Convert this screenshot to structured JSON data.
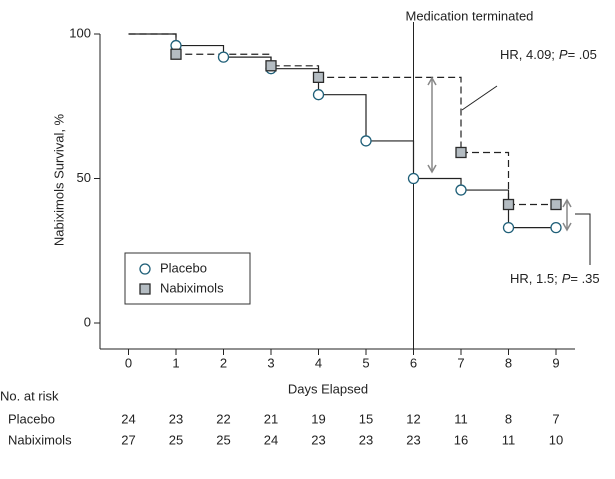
{
  "chart_data": {
    "type": "step",
    "x_label": "Days Elapsed",
    "y_label": "Nabiximols Survival, %",
    "x": [
      0,
      1,
      2,
      3,
      4,
      5,
      6,
      7,
      8,
      9
    ],
    "xlim": [
      -0.6,
      9.4
    ],
    "xticks": [
      0,
      1,
      2,
      3,
      4,
      5,
      6,
      7,
      8,
      9
    ],
    "ylim": [
      -9,
      100
    ],
    "yticks": [
      0,
      50,
      100
    ],
    "series": [
      {
        "name": "Placebo",
        "color": "#1f5f78",
        "fill": "#ffffff",
        "marker": "circle",
        "dash": false,
        "values": [
          100,
          96,
          92,
          88,
          79,
          63,
          50,
          46,
          33,
          33
        ],
        "censored_x": [
          1,
          2,
          3,
          4,
          5,
          6,
          7,
          8,
          9
        ]
      },
      {
        "name": "Nabiximols",
        "color": "#2b2b2b",
        "fill": "#b4bcc2",
        "marker": "square",
        "dash": true,
        "values": [
          100,
          93,
          93,
          89,
          85,
          85,
          85,
          59,
          41,
          41
        ],
        "censored_x": [
          1,
          3,
          4,
          7,
          8,
          9
        ]
      }
    ],
    "vline": {
      "x": 6,
      "label": "Medication terminated"
    },
    "annotations": [
      {
        "hr": "HR, 4.09;",
        "p": "P",
        "p_value": "= .05"
      },
      {
        "hr": "HR, 1.5;",
        "p": "P",
        "p_value": "= .35"
      }
    ],
    "risk_table": {
      "title": "No. at risk",
      "rows": [
        {
          "name": "Placebo",
          "values": [
            24,
            23,
            22,
            21,
            19,
            15,
            12,
            11,
            8,
            7
          ]
        },
        {
          "name": "Nabiximols",
          "values": [
            27,
            25,
            25,
            24,
            23,
            23,
            23,
            16,
            11,
            10
          ]
        }
      ]
    }
  }
}
